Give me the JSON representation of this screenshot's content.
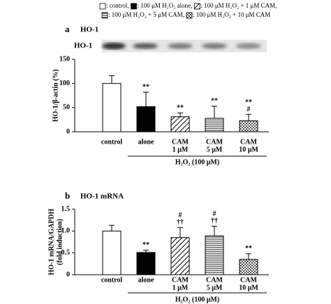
{
  "legend": {
    "entries": [
      ": control,",
      ": 100 μM H₂O₂ alone,",
      ": 100 μM H₂O₂ + 1 μM CAM,",
      ": 100 μM H₂O₂ + 5 μM CAM,",
      ": 100 μM H₂O₂ + 10 μM CAM"
    ],
    "patterns": [
      "none",
      "solid",
      "diagonal",
      "horizontal",
      "checker"
    ]
  },
  "chart_data": [
    {
      "type": "bar",
      "panel": "a",
      "title": "HO-1",
      "blot_label": "HO-1",
      "y_label": [
        "HO-1/β-actin (%)"
      ],
      "categories": [
        [
          "control"
        ],
        [
          "alone"
        ],
        [
          "CAM",
          "1 μM"
        ],
        [
          "CAM",
          "5 μM"
        ],
        [
          "CAM",
          "10 μM"
        ]
      ],
      "group_label": "H₂O₂ (100 μM)",
      "values": [
        100,
        52,
        31,
        28,
        23
      ],
      "errors": [
        16,
        30,
        8,
        25,
        13
      ],
      "significance": [
        null,
        [
          "**"
        ],
        [
          "**"
        ],
        [
          "**"
        ],
        [
          "**",
          "#"
        ]
      ],
      "bar_patterns": [
        "none",
        "solid",
        "diagonal",
        "horizontal",
        "checker"
      ],
      "color": "#000000",
      "ylim": [
        0,
        150
      ],
      "yticks": [
        0,
        50,
        100,
        150
      ]
    },
    {
      "type": "bar",
      "panel": "b",
      "title": "HO-1 mRNA",
      "y_label": [
        "HO-1 mRNA/GAPDH",
        "(fold induction)"
      ],
      "categories": [
        [
          "control"
        ],
        [
          "alone"
        ],
        [
          "CAM",
          "1 μM"
        ],
        [
          "CAM",
          "5 μM"
        ],
        [
          "CAM",
          "10 μM"
        ]
      ],
      "group_label": "H₂O₂ (100 μM)",
      "values": [
        1.0,
        0.51,
        0.85,
        0.89,
        0.35
      ],
      "errors": [
        0.13,
        0.05,
        0.23,
        0.22,
        0.13
      ],
      "significance": [
        null,
        [
          "**"
        ],
        [
          "#",
          "††"
        ],
        [
          "#",
          "††"
        ],
        [
          "**"
        ]
      ],
      "bar_patterns": [
        "none",
        "solid",
        "diagonal",
        "horizontal",
        "checker"
      ],
      "color": "#000000",
      "ylim": [
        0,
        1.5
      ],
      "yticks": [
        0,
        0.5,
        {
          "value": 1,
          "label": "1.0"
        },
        1.5
      ]
    }
  ]
}
